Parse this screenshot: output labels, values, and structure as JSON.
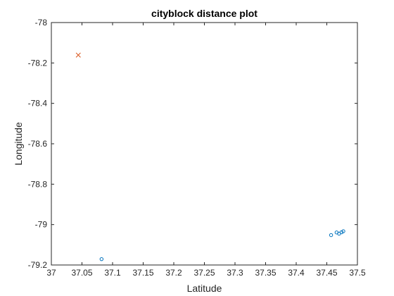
{
  "chart_data": {
    "type": "scatter",
    "title": "cityblock distance plot",
    "xlabel": "Latitude",
    "ylabel": "Longitude",
    "xlim": [
      37,
      37.5
    ],
    "ylim": [
      -79.2,
      -78
    ],
    "xticks": [
      "37",
      "37.05",
      "37.1",
      "37.15",
      "37.2",
      "37.25",
      "37.3",
      "37.35",
      "37.4",
      "37.45",
      "37.5"
    ],
    "yticks": [
      "-78",
      "-78.2",
      "-78.4",
      "-78.6",
      "-78.8",
      "-79",
      "-79.2"
    ],
    "grid": false,
    "series": [
      {
        "marker": "circle",
        "color": "#0072BD",
        "points": [
          {
            "x": 37.082,
            "y": -79.171
          },
          {
            "x": 37.457,
            "y": -79.052
          },
          {
            "x": 37.466,
            "y": -79.039
          },
          {
            "x": 37.47,
            "y": -79.045
          },
          {
            "x": 37.474,
            "y": -79.038
          },
          {
            "x": 37.477,
            "y": -79.033
          }
        ]
      },
      {
        "marker": "x",
        "color": "#D95319",
        "points": [
          {
            "x": 37.044,
            "y": -78.161
          }
        ]
      }
    ]
  }
}
